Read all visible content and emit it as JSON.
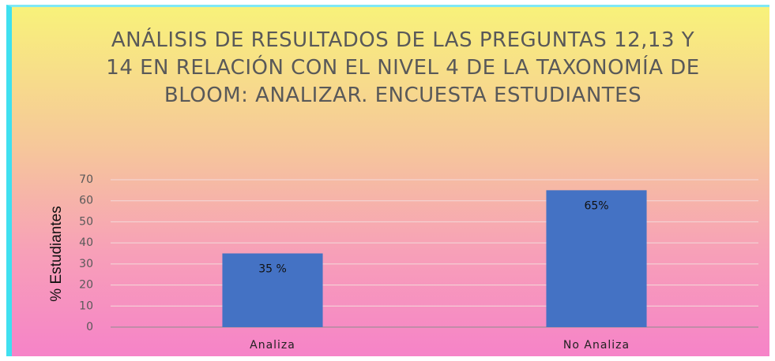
{
  "chart_data": {
    "type": "bar",
    "title": "ANÁLISIS DE RESULTADOS DE LAS PREGUNTAS 12,13 Y 14 EN RELACIÓN CON EL NIVEL 4 DE LA TAXONOMÍA DE BLOOM: ANALIZAR. ENCUESTA ESTUDIANTES",
    "y_label": "% Estudiantes",
    "categories": [
      "Analiza",
      "No Analiza"
    ],
    "values": [
      35,
      65
    ],
    "value_labels": [
      "35 %",
      "65%"
    ],
    "color": "#4472c4",
    "ylim": [
      0,
      70
    ],
    "yticks": [
      0,
      10,
      20,
      30,
      40,
      50,
      60,
      70
    ],
    "grid": true
  }
}
